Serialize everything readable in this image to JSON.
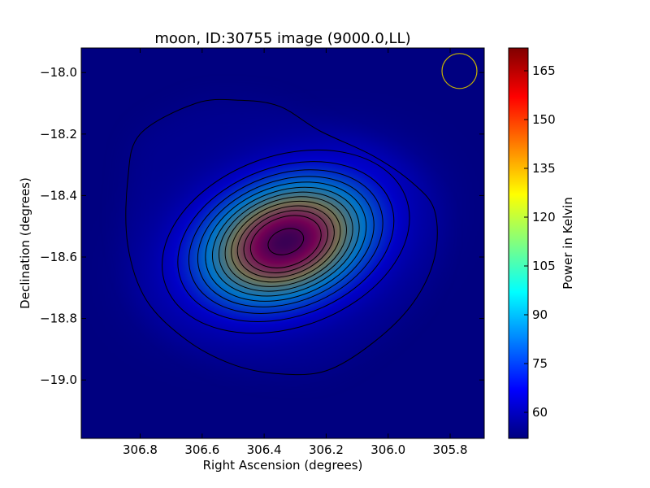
{
  "chart_data": {
    "type": "heatmap",
    "title": "moon, ID:30755 image (9000.0,LL)",
    "xlabel": "Right Ascension (degrees)",
    "ylabel": "Declination (degrees)",
    "colorbar_label": "Power in Kelvin",
    "x_axis_direction": "decreasing to the right",
    "xlim": [
      306.99,
      305.69
    ],
    "ylim": [
      -19.19,
      -17.92
    ],
    "x_ticks": [
      306.8,
      306.6,
      306.4,
      306.2,
      306.0,
      305.8
    ],
    "x_tick_labels": [
      "306.8",
      "306.6",
      "306.4",
      "306.2",
      "306.0",
      "305.8"
    ],
    "y_ticks": [
      -18.0,
      -18.2,
      -18.4,
      -18.6,
      -18.8,
      -19.0
    ],
    "y_tick_labels": [
      "−18.0",
      "−18.2",
      "−18.4",
      "−18.6",
      "−18.8",
      "−19.0"
    ],
    "colorbar_range": [
      52,
      172
    ],
    "colorbar_ticks": [
      60,
      75,
      90,
      105,
      120,
      135,
      150,
      165
    ],
    "colorbar_tick_labels": [
      "60",
      "75",
      "90",
      "105",
      "120",
      "135",
      "150",
      "165"
    ],
    "colormap": "jet",
    "background_level": 52,
    "source": {
      "peak_kelvin": 172,
      "center_ra": 306.33,
      "center_dec": -18.55,
      "ra_sigma_deg": 0.185,
      "dec_sigma_deg": 0.125,
      "position_angle_deg": 20
    },
    "halo": {
      "level_kelvin": 55,
      "outline": [
        [
          306.48,
          -18.09
        ],
        [
          306.62,
          -18.1
        ],
        [
          306.8,
          -18.2
        ],
        [
          306.84,
          -18.35
        ],
        [
          306.84,
          -18.56
        ],
        [
          306.78,
          -18.74
        ],
        [
          306.65,
          -18.87
        ],
        [
          306.5,
          -18.95
        ],
        [
          306.35,
          -18.98
        ],
        [
          306.2,
          -18.97
        ],
        [
          306.05,
          -18.88
        ],
        [
          305.92,
          -18.75
        ],
        [
          305.85,
          -18.6
        ],
        [
          305.85,
          -18.45
        ],
        [
          305.92,
          -18.36
        ],
        [
          306.05,
          -18.27
        ],
        [
          306.22,
          -18.19
        ],
        [
          306.35,
          -18.11
        ]
      ]
    },
    "contour_levels": [
      62,
      70,
      78,
      86,
      94,
      102,
      110,
      118,
      126,
      134,
      142,
      150,
      166
    ],
    "beam": {
      "center_ra": 305.77,
      "center_dec": -17.995,
      "radius_deg": 0.057,
      "color": "#c8b400"
    },
    "contour_color": "#000000"
  }
}
